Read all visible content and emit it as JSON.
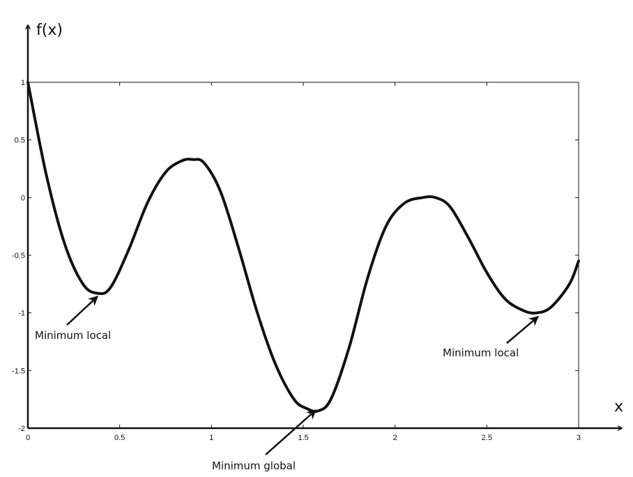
{
  "chart_data": {
    "type": "line",
    "title": "",
    "xlabel": "x",
    "ylabel": "f(x)",
    "xlim": [
      0,
      3
    ],
    "ylim": [
      -2,
      1
    ],
    "grid": false,
    "x_ticks": [
      0,
      0.5,
      1,
      1.5,
      2,
      2.5,
      3
    ],
    "x_tick_labels": [
      "0",
      "0.5",
      "1",
      "1.5",
      "2",
      "2.5",
      "3"
    ],
    "y_ticks": [
      1,
      0.5,
      0,
      -0.5,
      -1,
      -1.5,
      -2
    ],
    "y_tick_labels": [
      "1",
      "0.5",
      "0",
      "-0.5",
      "-1",
      "-1.5",
      "-2"
    ],
    "series": [
      {
        "color": "#111111",
        "x": [
          0,
          0.1,
          0.2,
          0.3,
          0.38,
          0.45,
          0.55,
          0.65,
          0.75,
          0.84,
          0.9,
          0.96,
          1.05,
          1.15,
          1.25,
          1.35,
          1.45,
          1.52,
          1.58,
          1.65,
          1.75,
          1.85,
          1.95,
          2.05,
          2.15,
          2.22,
          2.3,
          2.4,
          2.5,
          2.6,
          2.7,
          2.77,
          2.85,
          2.95,
          3.0
        ],
        "y": [
          1,
          0.2,
          -0.4,
          -0.75,
          -0.83,
          -0.78,
          -0.45,
          -0.05,
          0.22,
          0.32,
          0.33,
          0.3,
          0.05,
          -0.45,
          -1.0,
          -1.45,
          -1.75,
          -1.83,
          -1.85,
          -1.75,
          -1.3,
          -0.7,
          -0.25,
          -0.05,
          0.0,
          0.0,
          -0.08,
          -0.35,
          -0.65,
          -0.88,
          -0.98,
          -1.0,
          -0.95,
          -0.75,
          -0.55
        ]
      }
    ],
    "annotations": [
      {
        "text": "Minimum local",
        "x": 0.38,
        "y": -0.83
      },
      {
        "text": "Minimum global",
        "x": 1.58,
        "y": -1.85
      },
      {
        "text": "Minimum local",
        "x": 2.77,
        "y": -1.0
      }
    ]
  }
}
